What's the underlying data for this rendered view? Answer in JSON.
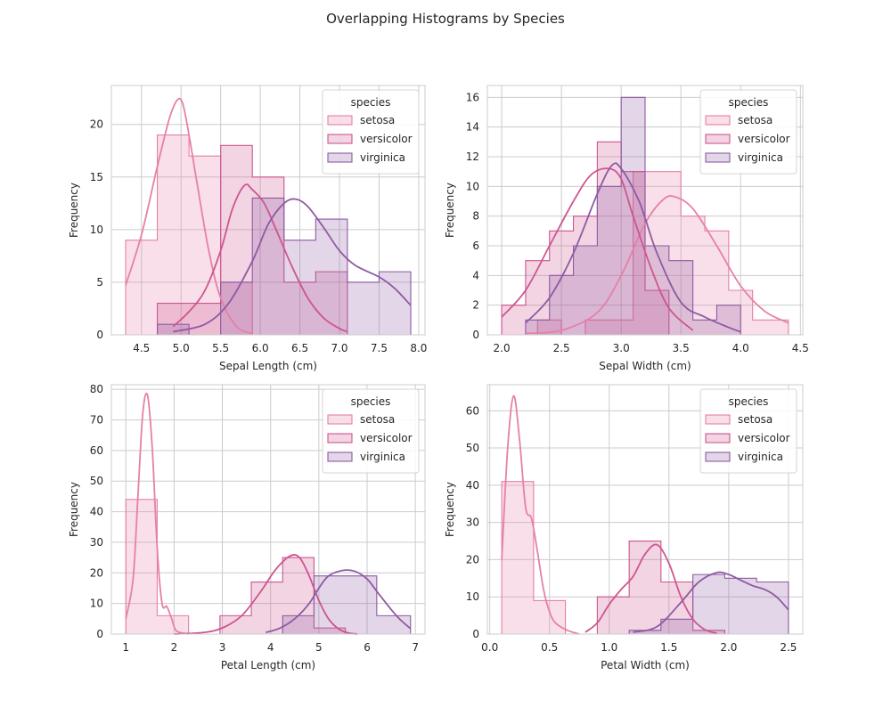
{
  "figure": {
    "suptitle": "Overlapping Histograms by Species"
  },
  "colors": {
    "setosa": "#e680a6",
    "versicolor": "#cd5590",
    "virginica": "#8e5aa3",
    "grid": "#cccccc",
    "axis_text": "#262626"
  },
  "chart_data": [
    {
      "type": "area",
      "ylabel": "Frequency",
      "xlabel": "Sepal Length (cm)",
      "xlim": [
        4.12,
        8.08
      ],
      "ylim": [
        0,
        23.7
      ],
      "xticks": [
        4.5,
        5.0,
        5.5,
        6.0,
        6.5,
        7.0,
        7.5,
        8.0
      ],
      "xtick_labels": [
        "4.5",
        "5.0",
        "5.5",
        "6.0",
        "6.5",
        "7.0",
        "7.5",
        "8.0"
      ],
      "yticks": [
        0,
        5,
        10,
        15,
        20
      ],
      "ytick_labels": [
        "0",
        "5",
        "10",
        "15",
        "20"
      ],
      "legend": {
        "title": "species",
        "entries": [
          "setosa",
          "versicolor",
          "virginica"
        ],
        "placement": "top-right"
      },
      "series": [
        {
          "name": "setosa",
          "bin_edges": [
            4.3,
            4.7,
            5.1,
            5.5,
            5.9
          ],
          "counts": [
            9,
            19,
            17,
            5
          ],
          "kde_x": [
            4.3,
            4.5,
            4.7,
            4.85,
            4.95,
            5.02,
            5.1,
            5.2,
            5.35,
            5.5,
            5.7,
            5.9
          ],
          "kde_y": [
            4.7,
            9.5,
            16.0,
            20.5,
            22.3,
            22.0,
            19.0,
            14.5,
            8.0,
            3.5,
            0.8,
            0.1
          ]
        },
        {
          "name": "versicolor",
          "bin_edges": [
            4.7,
            5.1,
            5.5,
            5.9,
            6.3,
            6.7,
            7.1
          ],
          "counts": [
            3,
            3,
            18,
            15,
            5,
            6
          ],
          "kde_x": [
            4.9,
            5.1,
            5.3,
            5.5,
            5.65,
            5.8,
            5.9,
            6.05,
            6.2,
            6.4,
            6.6,
            6.8,
            7.0,
            7.1
          ],
          "kde_y": [
            0.8,
            2.2,
            4.2,
            8.0,
            12.0,
            14.2,
            13.8,
            12.5,
            10.0,
            6.5,
            3.5,
            1.6,
            0.6,
            0.3
          ]
        },
        {
          "name": "virginica",
          "bin_edges": [
            4.7,
            5.1,
            5.5,
            5.9,
            6.3,
            6.7,
            7.1,
            7.5,
            7.9
          ],
          "counts": [
            1,
            0,
            5,
            13,
            9,
            11,
            5,
            6
          ],
          "kde_x": [
            4.9,
            5.3,
            5.6,
            5.9,
            6.1,
            6.3,
            6.45,
            6.6,
            6.8,
            7.0,
            7.2,
            7.5,
            7.7,
            7.9
          ],
          "kde_y": [
            0.3,
            1.0,
            3.0,
            7.0,
            10.5,
            12.5,
            12.9,
            12.2,
            10.2,
            8.0,
            6.6,
            5.5,
            4.4,
            2.8
          ]
        }
      ]
    },
    {
      "type": "area",
      "ylabel": "Frequency",
      "xlabel": "Sepal Width (cm)",
      "xlim": [
        1.88,
        4.52
      ],
      "ylim": [
        0,
        16.8
      ],
      "xticks": [
        2.0,
        2.5,
        3.0,
        3.5,
        4.0,
        4.5
      ],
      "xtick_labels": [
        "2.0",
        "2.5",
        "3.0",
        "3.5",
        "4.0",
        "4.5"
      ],
      "yticks": [
        0,
        2,
        4,
        6,
        8,
        10,
        12,
        14,
        16
      ],
      "ytick_labels": [
        "0",
        "2",
        "4",
        "6",
        "8",
        "10",
        "12",
        "14",
        "16"
      ],
      "legend": {
        "title": "species",
        "entries": [
          "setosa",
          "versicolor",
          "virginica"
        ],
        "placement": "top-right"
      },
      "series": [
        {
          "name": "setosa",
          "bin_edges": [
            2.3,
            2.5,
            2.7,
            2.9,
            3.1,
            3.3,
            3.5,
            3.7,
            3.9,
            4.1,
            4.4
          ],
          "counts": [
            1,
            0,
            1,
            1,
            11,
            11,
            8,
            7,
            3,
            1
          ],
          "kde_x": [
            2.2,
            2.5,
            2.8,
            3.0,
            3.2,
            3.35,
            3.45,
            3.6,
            3.8,
            4.0,
            4.2,
            4.4
          ],
          "kde_y": [
            0.1,
            0.3,
            1.5,
            4.0,
            7.5,
            9.1,
            9.3,
            8.5,
            6.0,
            3.3,
            1.6,
            0.8
          ]
        },
        {
          "name": "versicolor",
          "bin_edges": [
            2.0,
            2.2,
            2.4,
            2.6,
            2.8,
            3.0,
            3.2,
            3.4
          ],
          "counts": [
            2,
            5,
            7,
            8,
            13,
            11,
            3
          ],
          "kde_x": [
            2.0,
            2.2,
            2.4,
            2.6,
            2.75,
            2.9,
            3.0,
            3.1,
            3.25,
            3.4,
            3.6
          ],
          "kde_y": [
            1.2,
            3.0,
            6.0,
            9.0,
            10.8,
            11.2,
            10.5,
            8.0,
            4.5,
            1.8,
            0.3
          ]
        },
        {
          "name": "virginica",
          "bin_edges": [
            2.2,
            2.4,
            2.6,
            2.8,
            3.0,
            3.2,
            3.4,
            3.6,
            3.8,
            4.0
          ],
          "counts": [
            1,
            4,
            6,
            10,
            16,
            6,
            5,
            1,
            2
          ],
          "kde_x": [
            2.2,
            2.4,
            2.6,
            2.8,
            2.92,
            3.0,
            3.15,
            3.3,
            3.5,
            3.7,
            3.9,
            4.0
          ],
          "kde_y": [
            0.8,
            2.5,
            5.5,
            9.5,
            11.4,
            11.2,
            9.0,
            5.5,
            2.2,
            1.2,
            0.5,
            0.2
          ]
        }
      ]
    },
    {
      "type": "area",
      "ylabel": "Frequency",
      "xlabel": "Petal Length (cm)",
      "xlim": [
        0.7,
        7.2
      ],
      "ylim": [
        0,
        81.5
      ],
      "xticks": [
        1,
        2,
        3,
        4,
        5,
        6,
        7
      ],
      "xtick_labels": [
        "1",
        "2",
        "3",
        "4",
        "5",
        "6",
        "7"
      ],
      "yticks": [
        0,
        10,
        20,
        30,
        40,
        50,
        60,
        70,
        80
      ],
      "ytick_labels": [
        "0",
        "10",
        "20",
        "30",
        "40",
        "50",
        "60",
        "70",
        "80"
      ],
      "legend": {
        "title": "species",
        "entries": [
          "setosa",
          "versicolor",
          "virginica"
        ],
        "placement": "top-right"
      },
      "series": [
        {
          "name": "setosa",
          "bin_edges": [
            1.0,
            1.65,
            2.3
          ],
          "counts": [
            44,
            6
          ],
          "kde_x": [
            1.0,
            1.15,
            1.25,
            1.35,
            1.45,
            1.55,
            1.65,
            1.75,
            1.85,
            1.95,
            2.05,
            2.3
          ],
          "kde_y": [
            5,
            18,
            45,
            72,
            78,
            60,
            28,
            10,
            9,
            5,
            1,
            0
          ]
        },
        {
          "name": "versicolor",
          "bin_edges": [
            2.95,
            3.6,
            4.25,
            4.9,
            5.55
          ],
          "counts": [
            6,
            17,
            25,
            2
          ],
          "kde_x": [
            2.0,
            2.6,
            3.0,
            3.4,
            3.8,
            4.1,
            4.4,
            4.6,
            4.8,
            5.0,
            5.2,
            5.4,
            5.6,
            5.8
          ],
          "kde_y": [
            0,
            0.5,
            2.0,
            6.0,
            14.0,
            21.0,
            25.5,
            25.0,
            19.0,
            11.0,
            5.0,
            1.8,
            0.4,
            0
          ]
        },
        {
          "name": "virginica",
          "bin_edges": [
            4.25,
            4.9,
            5.55,
            6.2,
            6.9
          ],
          "counts": [
            6,
            19,
            19,
            6
          ],
          "kde_x": [
            3.9,
            4.2,
            4.5,
            4.8,
            5.0,
            5.2,
            5.5,
            5.75,
            6.0,
            6.2,
            6.5,
            6.7,
            6.9
          ],
          "kde_y": [
            0.5,
            2.0,
            5.0,
            10.0,
            15.0,
            19.0,
            20.8,
            20.5,
            18.0,
            14.0,
            8.0,
            4.5,
            1.8
          ]
        }
      ]
    },
    {
      "type": "area",
      "ylabel": "Frequency",
      "xlabel": "Petal Width (cm)",
      "xlim": [
        -0.02,
        2.62
      ],
      "ylim": [
        0,
        67
      ],
      "xticks": [
        0.0,
        0.5,
        1.0,
        1.5,
        2.0,
        2.5
      ],
      "xtick_labels": [
        "0.0",
        "0.5",
        "1.0",
        "1.5",
        "2.0",
        "2.5"
      ],
      "yticks": [
        0,
        10,
        20,
        30,
        40,
        50,
        60
      ],
      "ytick_labels": [
        "0",
        "10",
        "20",
        "30",
        "40",
        "50",
        "60"
      ],
      "legend": {
        "title": "species",
        "entries": [
          "setosa",
          "versicolor",
          "virginica"
        ],
        "placement": "top-right"
      },
      "series": [
        {
          "name": "setosa",
          "bin_edges": [
            0.1,
            0.367,
            0.633
          ],
          "counts": [
            41,
            9
          ],
          "kde_x": [
            0.1,
            0.15,
            0.2,
            0.25,
            0.3,
            0.35,
            0.4,
            0.45,
            0.5,
            0.55,
            0.65,
            0.75
          ],
          "kde_y": [
            20,
            50,
            64,
            52,
            34,
            31,
            22,
            12,
            6,
            3,
            1,
            0
          ]
        },
        {
          "name": "versicolor",
          "bin_edges": [
            0.9,
            1.167,
            1.433,
            1.7,
            1.967
          ],
          "counts": [
            10,
            25,
            14,
            1
          ],
          "kde_x": [
            0.8,
            0.9,
            1.0,
            1.1,
            1.2,
            1.3,
            1.4,
            1.5,
            1.6,
            1.7,
            1.8,
            1.9
          ],
          "kde_y": [
            0.5,
            3.0,
            8.0,
            12.0,
            15.5,
            21.5,
            24.0,
            19.0,
            10.0,
            4.0,
            1.2,
            0.2
          ]
        },
        {
          "name": "virginica",
          "bin_edges": [
            1.167,
            1.433,
            1.7,
            1.967,
            2.233,
            2.5
          ],
          "counts": [
            1,
            4,
            16,
            15,
            14
          ],
          "kde_x": [
            1.2,
            1.4,
            1.6,
            1.75,
            1.9,
            2.0,
            2.1,
            2.2,
            2.3,
            2.4,
            2.5
          ],
          "kde_y": [
            0.5,
            2.0,
            8.5,
            14.0,
            16.5,
            16.0,
            14.5,
            13.0,
            12.0,
            10.0,
            6.5
          ]
        }
      ]
    }
  ]
}
